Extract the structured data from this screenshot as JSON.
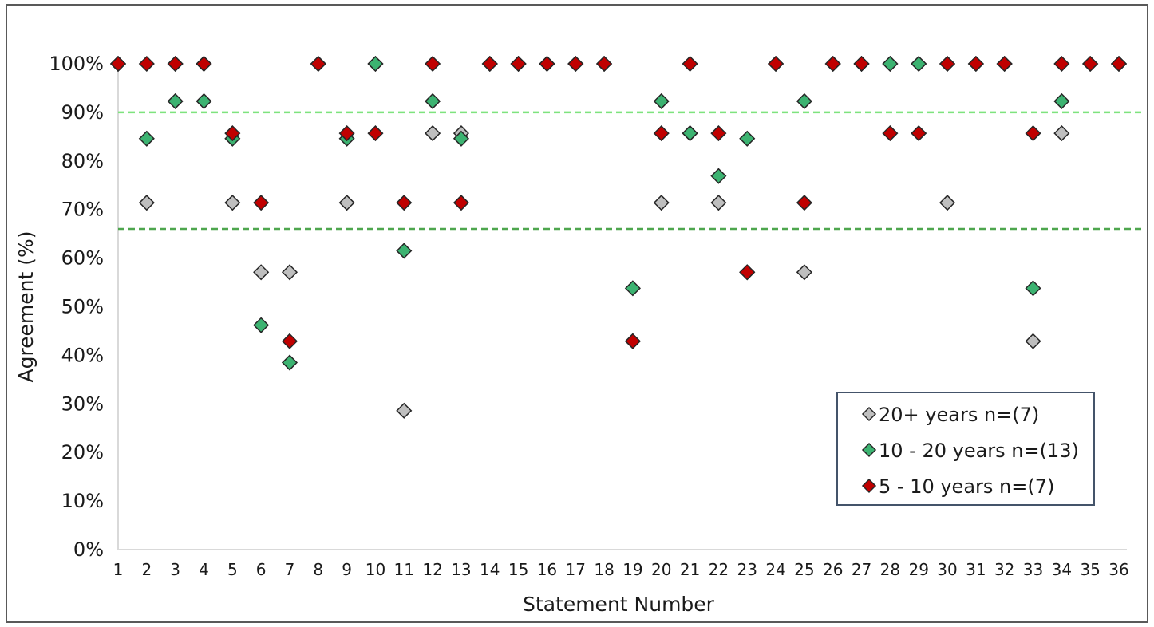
{
  "chart_data": {
    "type": "scatter",
    "xlabel": "Statement Number",
    "ylabel": "Agreement (%)",
    "x": [
      1,
      2,
      3,
      4,
      5,
      6,
      7,
      8,
      9,
      10,
      11,
      12,
      13,
      14,
      15,
      16,
      17,
      18,
      19,
      20,
      21,
      22,
      23,
      24,
      25,
      26,
      27,
      28,
      29,
      30,
      31,
      32,
      33,
      34,
      35,
      36
    ],
    "ylim": [
      0,
      100
    ],
    "yticks": [
      "0%",
      "10%",
      "20%",
      "30%",
      "40%",
      "50%",
      "60%",
      "70%",
      "80%",
      "90%",
      "100%"
    ],
    "yticks_values": [
      0,
      10,
      20,
      30,
      40,
      50,
      60,
      70,
      80,
      90,
      100
    ],
    "reference_lines": [
      {
        "value": 90,
        "color": "#7ee37e"
      },
      {
        "value": 66,
        "color": "#4ea64e"
      }
    ],
    "legend_position": "bottom-right",
    "grid": false,
    "series": [
      {
        "name": "20+ years n=(7)",
        "color": "#bfbfbf",
        "values": [
          100,
          71.4,
          100,
          100,
          71.4,
          57.1,
          57.1,
          100,
          71.4,
          100,
          28.6,
          85.7,
          85.7,
          100,
          100,
          100,
          100,
          100,
          42.9,
          71.4,
          85.7,
          71.4,
          57.1,
          100,
          57.1,
          100,
          100,
          100,
          100,
          71.4,
          100,
          100,
          42.9,
          85.7,
          100,
          100
        ]
      },
      {
        "name": "10 - 20 years n=(13)",
        "color": "#3cb371",
        "values": [
          100,
          84.6,
          92.3,
          92.3,
          84.6,
          46.2,
          38.5,
          100,
          84.6,
          100,
          61.5,
          92.3,
          84.6,
          100,
          100,
          100,
          100,
          100,
          53.8,
          92.3,
          85.7,
          76.9,
          84.6,
          100,
          92.3,
          100,
          100,
          100,
          100,
          100,
          100,
          100,
          53.8,
          92.3,
          100,
          100
        ]
      },
      {
        "name": "5 - 10 years n=(7)",
        "color": "#c00000",
        "values": [
          100,
          100,
          100,
          100,
          85.7,
          71.4,
          42.9,
          100,
          85.7,
          85.7,
          71.4,
          100,
          71.4,
          100,
          100,
          100,
          100,
          100,
          42.9,
          85.7,
          100,
          85.7,
          57.1,
          100,
          71.4,
          100,
          100,
          85.7,
          85.7,
          100,
          100,
          100,
          85.7,
          100,
          100,
          100
        ]
      }
    ]
  }
}
